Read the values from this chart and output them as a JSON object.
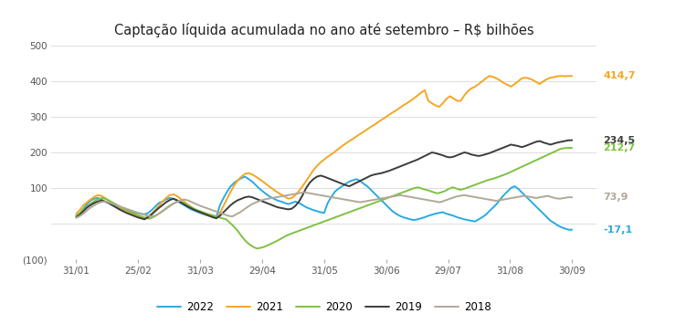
{
  "title": "Captação líquida acumulada no ano até setembro – R$ bilhões",
  "title_fontsize": 10.5,
  "xlabels": [
    "31/01",
    "25/02",
    "31/03",
    "29/04",
    "31/05",
    "30/06",
    "29/07",
    "31/08",
    "30/09"
  ],
  "ylim": [
    -100,
    510
  ],
  "yticks": [
    -100,
    0,
    100,
    200,
    300,
    400,
    500
  ],
  "ytick_labels": [
    "(100)",
    "",
    "100",
    "200",
    "300",
    "400",
    "500"
  ],
  "colors": {
    "2022": "#29ABE2",
    "2021": "#F5A623",
    "2020": "#7DC242",
    "2019": "#3C3C3C",
    "2018": "#B0A898"
  },
  "end_labels": {
    "2022": "-17,1",
    "2021": "414,7",
    "2020": "212,7",
    "2019": "234,5",
    "2018": "73,9"
  },
  "end_values": {
    "2022": -17.1,
    "2021": 414.7,
    "2020": 212.7,
    "2019": 234.5,
    "2018": 73.9
  },
  "legend_order": [
    "2022",
    "2021",
    "2020",
    "2019",
    "2018"
  ],
  "series": {
    "2022": [
      22,
      28,
      42,
      55,
      65,
      70,
      72,
      68,
      62,
      58,
      52,
      48,
      44,
      40,
      38,
      35,
      32,
      30,
      28,
      26,
      30,
      38,
      48,
      58,
      62,
      68,
      72,
      70,
      65,
      58,
      52,
      46,
      40,
      36,
      32,
      28,
      25,
      22,
      20,
      18,
      52,
      72,
      90,
      105,
      115,
      122,
      128,
      132,
      125,
      118,
      108,
      98,
      90,
      82,
      75,
      70,
      65,
      62,
      58,
      55,
      58,
      62,
      58,
      52,
      46,
      42,
      38,
      35,
      32,
      30,
      58,
      75,
      90,
      98,
      105,
      112,
      118,
      122,
      125,
      120,
      112,
      105,
      95,
      85,
      75,
      65,
      55,
      45,
      35,
      28,
      22,
      18,
      15,
      12,
      10,
      12,
      15,
      18,
      22,
      25,
      28,
      30,
      32,
      28,
      25,
      22,
      18,
      15,
      12,
      10,
      8,
      6,
      12,
      18,
      25,
      35,
      45,
      55,
      68,
      80,
      90,
      100,
      105,
      98,
      88,
      78,
      68,
      58,
      48,
      38,
      28,
      18,
      8,
      2,
      -5,
      -10,
      -14,
      -17,
      -17.1
    ],
    "2021": [
      28,
      38,
      52,
      60,
      68,
      75,
      80,
      78,
      72,
      65,
      58,
      52,
      46,
      40,
      35,
      30,
      26,
      22,
      18,
      15,
      20,
      28,
      38,
      50,
      62,
      72,
      80,
      82,
      78,
      70,
      62,
      54,
      46,
      40,
      35,
      30,
      26,
      22,
      18,
      15,
      30,
      50,
      70,
      90,
      108,
      122,
      132,
      140,
      142,
      138,
      132,
      125,
      118,
      110,
      102,
      95,
      88,
      82,
      76,
      70,
      72,
      80,
      92,
      105,
      120,
      135,
      150,
      162,
      172,
      180,
      188,
      195,
      202,
      210,
      218,
      225,
      232,
      238,
      245,
      252,
      258,
      265,
      272,
      278,
      285,
      292,
      298,
      305,
      312,
      318,
      325,
      332,
      338,
      345,
      352,
      360,
      368,
      375,
      345,
      338,
      332,
      328,
      338,
      350,
      358,
      352,
      345,
      345,
      360,
      372,
      380,
      385,
      392,
      400,
      408,
      415,
      412,
      408,
      402,
      395,
      390,
      385,
      392,
      400,
      408,
      410,
      408,
      404,
      398,
      392,
      400,
      406,
      410,
      412,
      414,
      415,
      414,
      415,
      414.7
    ],
    "2020": [
      22,
      30,
      40,
      50,
      58,
      65,
      70,
      72,
      68,
      62,
      56,
      50,
      44,
      38,
      33,
      28,
      24,
      20,
      16,
      14,
      18,
      24,
      32,
      40,
      48,
      55,
      60,
      62,
      58,
      52,
      46,
      40,
      36,
      32,
      28,
      25,
      22,
      18,
      15,
      12,
      2,
      -8,
      -20,
      -35,
      -48,
      -58,
      -65,
      -70,
      -68,
      -65,
      -60,
      -55,
      -50,
      -44,
      -38,
      -32,
      -28,
      -24,
      -20,
      -16,
      -12,
      -8,
      -4,
      0,
      4,
      8,
      12,
      16,
      20,
      24,
      28,
      32,
      36,
      40,
      44,
      48,
      52,
      56,
      60,
      64,
      68,
      72,
      76,
      80,
      84,
      88,
      92,
      96,
      100,
      102,
      98,
      95,
      92,
      88,
      85,
      88,
      92,
      98,
      102,
      98,
      95,
      98,
      102,
      106,
      110,
      114,
      118,
      122,
      125,
      128,
      132,
      136,
      140,
      145,
      150,
      155,
      160,
      165,
      170,
      175,
      180,
      185,
      190,
      195,
      200,
      205,
      210,
      212,
      213,
      212.7
    ],
    "2019": [
      18,
      25,
      35,
      45,
      52,
      58,
      62,
      65,
      62,
      58,
      52,
      46,
      40,
      35,
      30,
      26,
      22,
      18,
      15,
      12,
      18,
      26,
      35,
      44,
      52,
      60,
      66,
      70,
      66,
      60,
      54,
      48,
      43,
      38,
      34,
      30,
      26,
      22,
      18,
      15,
      22,
      32,
      42,
      52,
      60,
      66,
      70,
      74,
      76,
      74,
      70,
      66,
      62,
      58,
      54,
      50,
      46,
      44,
      42,
      40,
      42,
      50,
      62,
      80,
      100,
      115,
      125,
      132,
      135,
      132,
      128,
      124,
      120,
      116,
      112,
      108,
      105,
      110,
      115,
      120,
      125,
      130,
      135,
      138,
      140,
      142,
      145,
      148,
      152,
      156,
      160,
      164,
      168,
      172,
      176,
      180,
      185,
      190,
      195,
      200,
      198,
      195,
      192,
      188,
      186,
      188,
      192,
      196,
      200,
      198,
      194,
      192,
      190,
      192,
      195,
      198,
      202,
      206,
      210,
      214,
      218,
      222,
      220,
      218,
      215,
      218,
      222,
      226,
      230,
      232,
      228,
      225,
      222,
      225,
      228,
      230,
      232,
      234,
      234.5
    ],
    "2018": [
      16,
      22,
      30,
      40,
      48,
      55,
      60,
      62,
      60,
      56,
      52,
      48,
      44,
      40,
      36,
      32,
      28,
      25,
      22,
      20,
      24,
      30,
      38,
      46,
      54,
      60,
      65,
      68,
      65,
      60,
      55,
      50,
      46,
      42,
      38,
      34,
      30,
      26,
      22,
      20,
      26,
      32,
      40,
      48,
      55,
      60,
      64,
      68,
      70,
      72,
      74,
      76,
      78,
      80,
      82,
      84,
      86,
      88,
      86,
      84,
      82,
      80,
      78,
      76,
      74,
      72,
      70,
      68,
      66,
      64,
      62,
      60,
      62,
      64,
      66,
      68,
      70,
      72,
      74,
      76,
      78,
      80,
      78,
      76,
      74,
      72,
      70,
      68,
      66,
      64,
      62,
      60,
      64,
      68,
      72,
      76,
      78,
      80,
      78,
      76,
      74,
      72,
      70,
      68,
      66,
      64,
      66,
      68,
      70,
      72,
      74,
      76,
      78,
      76,
      74,
      72,
      74,
      76,
      78,
      74,
      71,
      70,
      72,
      74,
      73.9
    ]
  }
}
